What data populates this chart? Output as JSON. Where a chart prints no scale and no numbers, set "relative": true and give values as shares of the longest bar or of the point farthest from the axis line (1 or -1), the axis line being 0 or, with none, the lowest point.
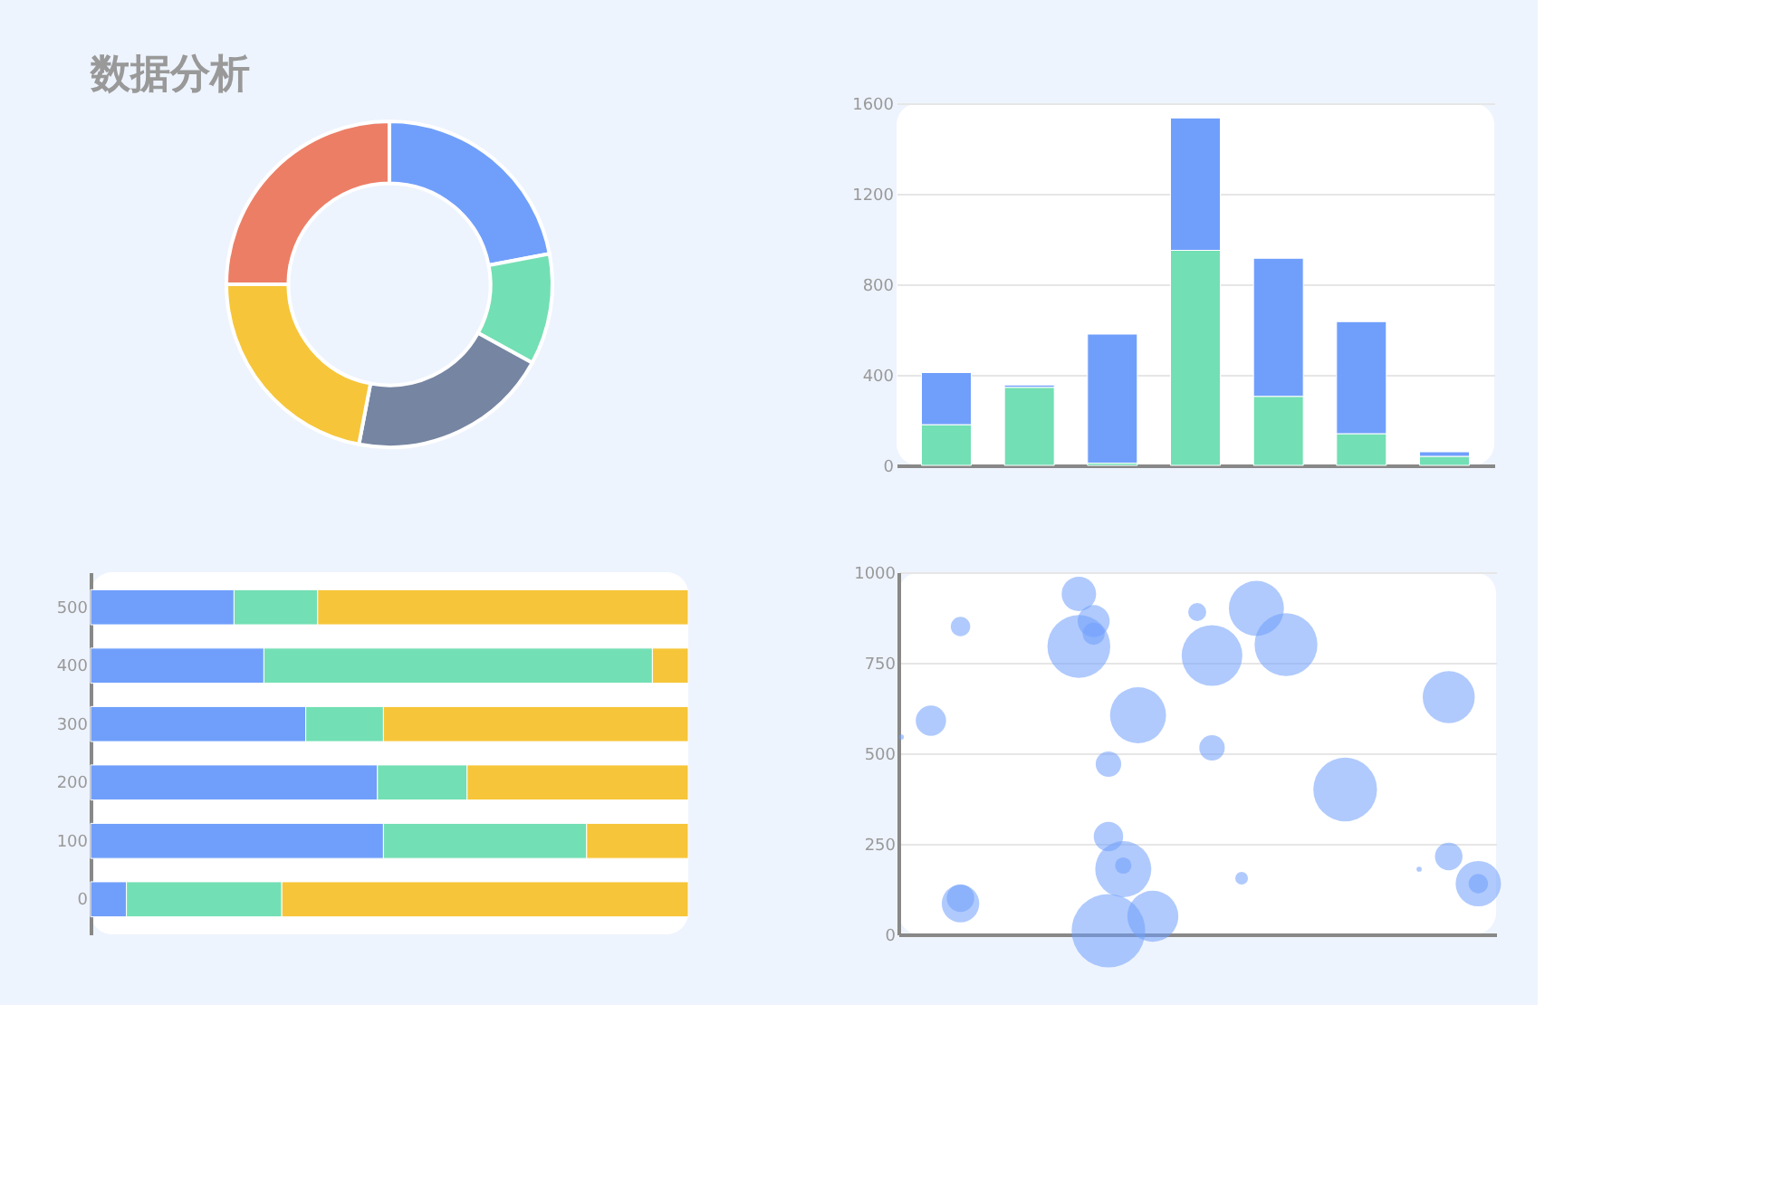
{
  "chart_data": [
    {
      "type": "donut",
      "title": "数据分析",
      "categories": [
        null,
        null,
        null,
        null,
        null
      ],
      "values": [
        22,
        11,
        20,
        22,
        25
      ],
      "colors": [
        "#709ffb",
        "#73dfb4",
        "#7585a2",
        "#f6c539",
        "#ec7e66"
      ]
    },
    {
      "type": "bar",
      "stacked": true,
      "categories": [
        null,
        null,
        null,
        null,
        null,
        null,
        null
      ],
      "ylim": [
        0,
        1600
      ],
      "yticks": [
        0,
        400,
        800,
        1200,
        1600
      ],
      "grid": "y",
      "tick_labels": "y",
      "series": [
        {
          "color": "#73dfb4",
          "values": [
            180,
            345,
            10,
            950,
            305,
            140,
            40
          ]
        },
        {
          "color": "#709ffb",
          "values": [
            230,
            10,
            570,
            585,
            610,
            495,
            20
          ]
        }
      ]
    },
    {
      "type": "bar",
      "stacked": true,
      "orientation": "horizontal",
      "relative": true,
      "categories": [
        "500",
        "400",
        "300",
        "200",
        "100",
        "0"
      ],
      "series": [
        {
          "color": "#709ffb",
          "values": [
            0.24,
            0.29,
            0.36,
            0.48,
            0.49,
            0.06
          ]
        },
        {
          "color": "#73dfb4",
          "values": [
            0.14,
            0.65,
            0.13,
            0.15,
            0.34,
            0.26
          ]
        },
        {
          "color": "#f6c539",
          "values": [
            0.62,
            0.06,
            0.51,
            0.37,
            0.17,
            0.68
          ]
        }
      ]
    },
    {
      "type": "bubble",
      "ylim": [
        0,
        1000
      ],
      "yticks": [
        0,
        250,
        500,
        750,
        1000
      ],
      "grid": "y",
      "tick_labels": "y",
      "categories": [
        null,
        null,
        null,
        null,
        null,
        null,
        null,
        null,
        null,
        null,
        null,
        null,
        null,
        null,
        null,
        null,
        null,
        null,
        null,
        null,
        null,
        null,
        null,
        null,
        null,
        null,
        null,
        null,
        null,
        null,
        null,
        null,
        null,
        null,
        null,
        null,
        null,
        null,
        null,
        null,
        null
      ],
      "series": [
        {
          "color": "#709ffb",
          "values": [
            545,
            null,
            590,
            null,
            850,
            null,
            null,
            null,
            null,
            null,
            null,
            null,
            940,
            865,
            470,
            180,
            605,
            50,
            null,
            null,
            890,
            770,
            null,
            155,
            900,
            null,
            800,
            null,
            null,
            null,
            400,
            null,
            null,
            null,
            null,
            180,
            null,
            655,
            null,
            140,
            null
          ],
          "sizes": [
            0.005,
            null,
            0.17,
            null,
            0.07,
            null,
            null,
            null,
            null,
            null,
            null,
            null,
            0.22,
            0.19,
            0.12,
            0.58,
            0.58,
            0.48,
            null,
            null,
            0.06,
            0.68,
            null,
            0.03,
            0.56,
            null,
            0.73,
            null,
            null,
            null,
            0.75,
            null,
            null,
            null,
            null,
            0.005,
            null,
            0.5,
            null,
            0.07,
            null
          ]
        },
        {
          "color": "#709ffb",
          "values": [
            null,
            null,
            null,
            null,
            85,
            null,
            null,
            null,
            null,
            null,
            null,
            null,
            795,
            830,
            270,
            190,
            null,
            null,
            null,
            null,
            null,
            515,
            null,
            null,
            null,
            null,
            null,
            null,
            null,
            null,
            null,
            null,
            null,
            null,
            null,
            null,
            null,
            215,
            null,
            140,
            null
          ],
          "sizes": [
            null,
            null,
            null,
            null,
            0.26,
            null,
            null,
            null,
            null,
            null,
            null,
            null,
            0.73,
            0.09,
            0.16,
            0.05,
            null,
            null,
            null,
            null,
            null,
            0.12,
            null,
            null,
            null,
            null,
            null,
            null,
            null,
            null,
            null,
            null,
            null,
            null,
            null,
            null,
            null,
            0.14,
            null,
            0.38,
            null
          ]
        },
        {
          "color": "#709ffb",
          "values": [
            null,
            null,
            null,
            null,
            100,
            null,
            null,
            null,
            null,
            null,
            null,
            null,
            null,
            null,
            10,
            null,
            null,
            null,
            null,
            null,
            null,
            null,
            null,
            null,
            null,
            null,
            null,
            null,
            null,
            null,
            null,
            null,
            null,
            null,
            null,
            null,
            null,
            null,
            null,
            null,
            null
          ],
          "sizes": [
            null,
            null,
            null,
            null,
            0.14,
            null,
            null,
            null,
            null,
            null,
            null,
            null,
            null,
            null,
            1,
            null,
            null,
            null,
            null,
            null,
            null,
            null,
            null,
            null,
            null,
            null,
            null,
            null,
            null,
            null,
            null,
            null,
            null,
            null,
            null,
            null,
            null,
            null,
            null,
            null,
            null
          ]
        }
      ]
    }
  ]
}
